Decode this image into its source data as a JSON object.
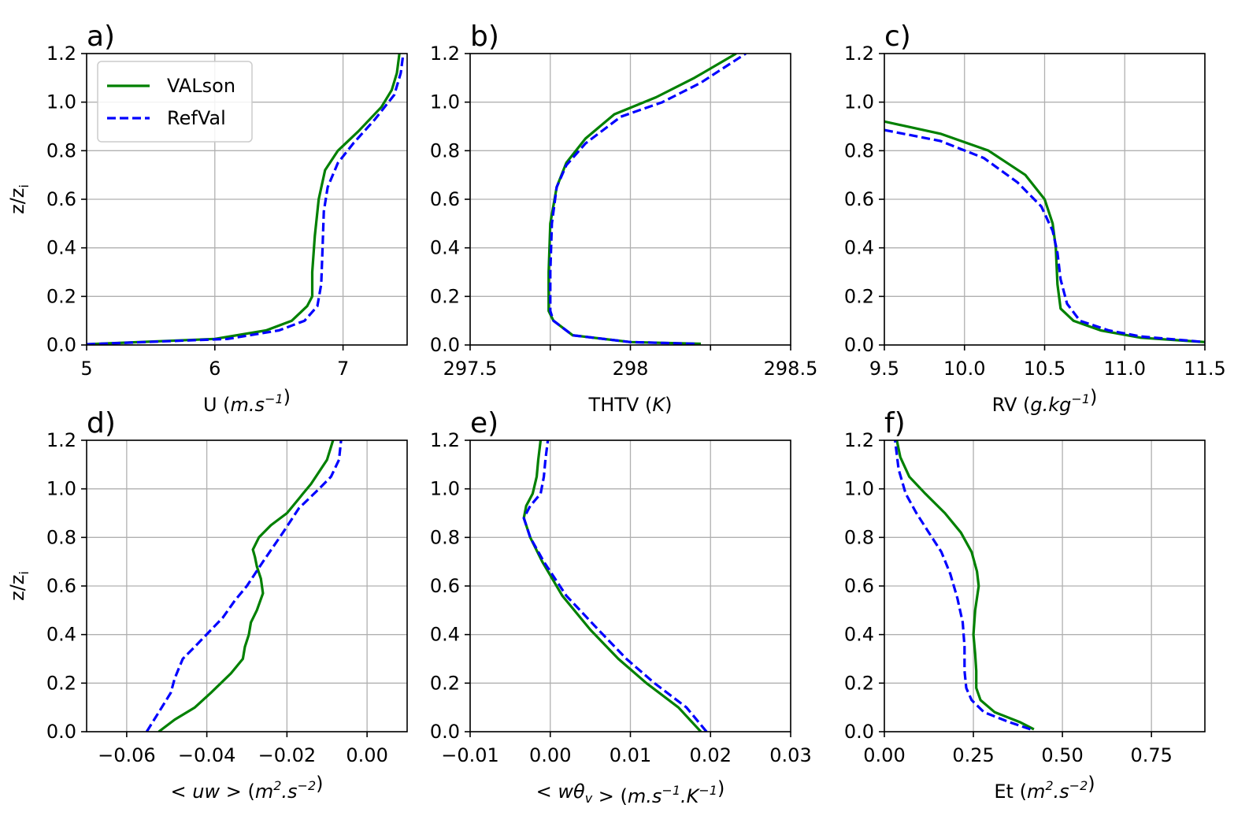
{
  "figure": {
    "legend": {
      "placement": "top-left of panel a",
      "entries": [
        {
          "label": "VALson",
          "color": "#008000",
          "style": "solid"
        },
        {
          "label": "RefVal",
          "color": "#0000ff",
          "style": "dashed"
        }
      ]
    },
    "grid": true
  },
  "chart_data": [
    {
      "type": "line",
      "panel": "a)",
      "xlabel": "U (m.s⁻¹)",
      "ylabel": "z/zᵢ",
      "xlim": [
        5,
        7.5
      ],
      "ylim": [
        0,
        1.2
      ],
      "xticks": [
        {
          "v": 5,
          "label": "5"
        },
        {
          "v": 6,
          "label": "6"
        },
        {
          "v": 7,
          "label": "7"
        }
      ],
      "yticks": [
        {
          "v": 0,
          "label": "0.0"
        },
        {
          "v": 0.2,
          "label": "0.2"
        },
        {
          "v": 0.4,
          "label": "0.4"
        },
        {
          "v": 0.6,
          "label": "0.6"
        },
        {
          "v": 0.8,
          "label": "0.8"
        },
        {
          "v": 1.0,
          "label": "1.0"
        },
        {
          "v": 1.2,
          "label": "1.2"
        }
      ],
      "series": [
        {
          "name": "VALson",
          "color": "#008000",
          "dash": false,
          "x": [
            5.0,
            6.0,
            6.4,
            6.6,
            6.72,
            6.76,
            6.76,
            6.78,
            6.81,
            6.86,
            6.96,
            7.12,
            7.3,
            7.38,
            7.42,
            7.44
          ],
          "y": [
            0.003,
            0.025,
            0.06,
            0.1,
            0.16,
            0.2,
            0.3,
            0.45,
            0.6,
            0.72,
            0.8,
            0.88,
            0.98,
            1.05,
            1.12,
            1.2
          ]
        },
        {
          "name": "RefVal",
          "color": "#0000ff",
          "dash": true,
          "x": [
            5.0,
            6.1,
            6.5,
            6.7,
            6.8,
            6.83,
            6.84,
            6.85,
            6.88,
            6.96,
            7.08,
            7.25,
            7.4,
            7.45,
            7.47
          ],
          "y": [
            0.003,
            0.025,
            0.06,
            0.1,
            0.16,
            0.25,
            0.4,
            0.55,
            0.65,
            0.75,
            0.83,
            0.93,
            1.03,
            1.12,
            1.2
          ]
        }
      ]
    },
    {
      "type": "line",
      "panel": "b)",
      "xlabel": "THTV (K)",
      "ylabel": "",
      "xlim": [
        297.5,
        298.5
      ],
      "ylim": [
        0,
        1.2
      ],
      "xticks": [
        {
          "v": 297.5,
          "label": "297.5"
        },
        {
          "v": 297.75,
          "label": ""
        },
        {
          "v": 298.0,
          "label": "298"
        },
        {
          "v": 298.25,
          "label": ""
        },
        {
          "v": 298.5,
          "label": "298.5"
        }
      ],
      "yticks": [
        {
          "v": 0,
          "label": "0.0"
        },
        {
          "v": 0.2,
          "label": "0.2"
        },
        {
          "v": 0.4,
          "label": "0.4"
        },
        {
          "v": 0.6,
          "label": "0.6"
        },
        {
          "v": 0.8,
          "label": "0.8"
        },
        {
          "v": 1.0,
          "label": "1.0"
        },
        {
          "v": 1.2,
          "label": "1.2"
        }
      ],
      "series": [
        {
          "name": "VALson",
          "color": "#008000",
          "dash": false,
          "x": [
            298.22,
            298.0,
            297.82,
            297.76,
            297.745,
            297.745,
            297.75,
            297.77,
            297.8,
            297.86,
            297.95,
            298.08,
            298.2,
            298.33
          ],
          "y": [
            0.005,
            0.012,
            0.04,
            0.1,
            0.14,
            0.3,
            0.5,
            0.65,
            0.75,
            0.85,
            0.95,
            1.02,
            1.1,
            1.2
          ]
        },
        {
          "name": "RefVal",
          "color": "#0000ff",
          "dash": true,
          "x": [
            298.2,
            298.0,
            297.82,
            297.76,
            297.75,
            297.75,
            297.755,
            297.77,
            297.8,
            297.86,
            297.97,
            298.1,
            298.22,
            298.36
          ],
          "y": [
            0.005,
            0.012,
            0.04,
            0.1,
            0.14,
            0.3,
            0.5,
            0.65,
            0.74,
            0.83,
            0.94,
            1.0,
            1.08,
            1.2
          ]
        }
      ]
    },
    {
      "type": "line",
      "panel": "c)",
      "xlabel": "RV (g.kg⁻¹)",
      "ylabel": "",
      "xlim": [
        9.5,
        11.5
      ],
      "ylim": [
        0,
        1.2
      ],
      "xticks": [
        {
          "v": 9.5,
          "label": "9.5"
        },
        {
          "v": 10.0,
          "label": "10.0"
        },
        {
          "v": 10.5,
          "label": "10.5"
        },
        {
          "v": 11.0,
          "label": "11.0"
        },
        {
          "v": 11.5,
          "label": "11.5"
        }
      ],
      "yticks": [
        {
          "v": 0,
          "label": "0.0"
        },
        {
          "v": 0.2,
          "label": "0.2"
        },
        {
          "v": 0.4,
          "label": "0.4"
        },
        {
          "v": 0.6,
          "label": "0.6"
        },
        {
          "v": 0.8,
          "label": "0.8"
        },
        {
          "v": 1.0,
          "label": "1.0"
        },
        {
          "v": 1.2,
          "label": "1.2"
        }
      ],
      "series": [
        {
          "name": "VALson",
          "color": "#008000",
          "dash": false,
          "x": [
            9.5,
            9.85,
            10.15,
            10.38,
            10.5,
            10.55,
            10.57,
            10.58,
            10.6,
            10.68,
            10.85,
            11.1,
            11.5
          ],
          "y": [
            0.92,
            0.87,
            0.8,
            0.7,
            0.6,
            0.5,
            0.4,
            0.25,
            0.15,
            0.1,
            0.06,
            0.03,
            0.012
          ]
        },
        {
          "name": "RefVal",
          "color": "#0000ff",
          "dash": true,
          "x": [
            9.5,
            9.85,
            10.12,
            10.33,
            10.48,
            10.55,
            10.58,
            10.6,
            10.64,
            10.72,
            10.9,
            11.1,
            11.5
          ],
          "y": [
            0.885,
            0.84,
            0.77,
            0.67,
            0.57,
            0.47,
            0.38,
            0.27,
            0.17,
            0.1,
            0.06,
            0.035,
            0.012
          ]
        }
      ]
    },
    {
      "type": "line",
      "panel": "d)",
      "xlabel": "< uw >  (m².s⁻²)",
      "ylabel": "z/zᵢ",
      "xlim": [
        -0.07,
        0.01
      ],
      "ylim": [
        0,
        1.2
      ],
      "xticks": [
        {
          "v": -0.06,
          "label": "−0.06"
        },
        {
          "v": -0.04,
          "label": "−0.04"
        },
        {
          "v": -0.02,
          "label": "−0.02"
        },
        {
          "v": 0.0,
          "label": "0.00"
        }
      ],
      "yticks": [
        {
          "v": 0,
          "label": "0.0"
        },
        {
          "v": 0.2,
          "label": "0.2"
        },
        {
          "v": 0.4,
          "label": "0.4"
        },
        {
          "v": 0.6,
          "label": "0.6"
        },
        {
          "v": 0.8,
          "label": "0.8"
        },
        {
          "v": 1.0,
          "label": "1.0"
        },
        {
          "v": 1.2,
          "label": "1.2"
        }
      ],
      "series": [
        {
          "name": "VALson",
          "color": "#008000",
          "dash": false,
          "x": [
            -0.052,
            -0.048,
            -0.043,
            -0.039,
            -0.034,
            -0.031,
            -0.0305,
            -0.0295,
            -0.029,
            -0.0275,
            -0.026,
            -0.0265,
            -0.0275,
            -0.028,
            -0.0285,
            -0.027,
            -0.024,
            -0.02,
            -0.0175,
            -0.016,
            -0.014,
            -0.012,
            -0.01,
            -0.0085
          ],
          "y": [
            0.0,
            0.05,
            0.1,
            0.16,
            0.24,
            0.3,
            0.35,
            0.4,
            0.45,
            0.5,
            0.57,
            0.63,
            0.68,
            0.72,
            0.75,
            0.8,
            0.85,
            0.9,
            0.95,
            0.98,
            1.02,
            1.07,
            1.12,
            1.2
          ]
        },
        {
          "name": "RefVal",
          "color": "#0000ff",
          "dash": true,
          "x": [
            -0.055,
            -0.052,
            -0.049,
            -0.048,
            -0.046,
            -0.043,
            -0.0395,
            -0.036,
            -0.033,
            -0.03,
            -0.026,
            -0.021,
            -0.017,
            -0.012,
            -0.009,
            -0.007,
            -0.0065
          ],
          "y": [
            0.0,
            0.08,
            0.16,
            0.22,
            0.3,
            0.35,
            0.41,
            0.47,
            0.54,
            0.6,
            0.7,
            0.82,
            0.92,
            1.0,
            1.05,
            1.12,
            1.2
          ]
        }
      ]
    },
    {
      "type": "line",
      "panel": "e)",
      "xlabel": "< wθᵥ >  (m.s⁻¹.K⁻¹)",
      "ylabel": "",
      "xlim": [
        -0.01,
        0.03
      ],
      "ylim": [
        0,
        1.2
      ],
      "xticks": [
        {
          "v": -0.01,
          "label": "−0.01"
        },
        {
          "v": 0.0,
          "label": "0.00"
        },
        {
          "v": 0.01,
          "label": "0.01"
        },
        {
          "v": 0.02,
          "label": "0.02"
        },
        {
          "v": 0.03,
          "label": "0.03"
        }
      ],
      "yticks": [
        {
          "v": 0,
          "label": "0.0"
        },
        {
          "v": 0.2,
          "label": "0.2"
        },
        {
          "v": 0.4,
          "label": "0.4"
        },
        {
          "v": 0.6,
          "label": "0.6"
        },
        {
          "v": 0.8,
          "label": "0.8"
        },
        {
          "v": 1.0,
          "label": "1.0"
        },
        {
          "v": 1.2,
          "label": "1.2"
        }
      ],
      "series": [
        {
          "name": "VALson",
          "color": "#008000",
          "dash": false,
          "x": [
            0.0188,
            0.016,
            0.012,
            0.0085,
            0.005,
            0.0015,
            -0.001,
            -0.0025,
            -0.0033,
            -0.003,
            -0.0022,
            -0.0017,
            -0.0015,
            -0.0012
          ],
          "y": [
            0.0,
            0.1,
            0.2,
            0.3,
            0.42,
            0.56,
            0.7,
            0.8,
            0.88,
            0.93,
            0.98,
            1.05,
            1.12,
            1.2
          ]
        },
        {
          "name": "RefVal",
          "color": "#0000ff",
          "dash": true,
          "x": [
            0.0195,
            0.017,
            0.013,
            0.0095,
            0.006,
            0.002,
            -0.0008,
            -0.0025,
            -0.0033,
            -0.0025,
            -0.0012,
            -0.0008,
            -0.0006,
            -0.0003
          ],
          "y": [
            0.0,
            0.1,
            0.2,
            0.3,
            0.42,
            0.56,
            0.7,
            0.8,
            0.88,
            0.93,
            0.98,
            1.05,
            1.12,
            1.2
          ]
        }
      ]
    },
    {
      "type": "line",
      "panel": "f)",
      "xlabel": "Et (m².s⁻²)",
      "ylabel": "",
      "xlim": [
        0,
        0.9
      ],
      "ylim": [
        0,
        1.2
      ],
      "xticks": [
        {
          "v": 0.0,
          "label": "0.00"
        },
        {
          "v": 0.25,
          "label": "0.25"
        },
        {
          "v": 0.5,
          "label": "0.50"
        },
        {
          "v": 0.75,
          "label": "0.75"
        }
      ],
      "yticks": [
        {
          "v": 0,
          "label": "0.0"
        },
        {
          "v": 0.2,
          "label": "0.2"
        },
        {
          "v": 0.4,
          "label": "0.4"
        },
        {
          "v": 0.6,
          "label": "0.6"
        },
        {
          "v": 0.8,
          "label": "0.8"
        },
        {
          "v": 1.0,
          "label": "1.0"
        },
        {
          "v": 1.2,
          "label": "1.2"
        }
      ],
      "series": [
        {
          "name": "VALson",
          "color": "#008000",
          "dash": false,
          "x": [
            0.42,
            0.38,
            0.31,
            0.27,
            0.258,
            0.258,
            0.255,
            0.25,
            0.255,
            0.265,
            0.26,
            0.245,
            0.215,
            0.17,
            0.115,
            0.07,
            0.045,
            0.035
          ],
          "y": [
            0.01,
            0.04,
            0.08,
            0.13,
            0.18,
            0.25,
            0.32,
            0.4,
            0.5,
            0.6,
            0.66,
            0.74,
            0.82,
            0.9,
            0.98,
            1.05,
            1.13,
            1.2
          ]
        },
        {
          "name": "RefVal",
          "color": "#0000ff",
          "dash": true,
          "x": [
            0.41,
            0.35,
            0.28,
            0.245,
            0.23,
            0.225,
            0.225,
            0.22,
            0.205,
            0.185,
            0.16,
            0.125,
            0.09,
            0.06,
            0.04,
            0.03
          ],
          "y": [
            0.01,
            0.04,
            0.08,
            0.13,
            0.18,
            0.25,
            0.35,
            0.45,
            0.55,
            0.65,
            0.74,
            0.82,
            0.9,
            0.98,
            1.08,
            1.2
          ]
        }
      ]
    }
  ]
}
